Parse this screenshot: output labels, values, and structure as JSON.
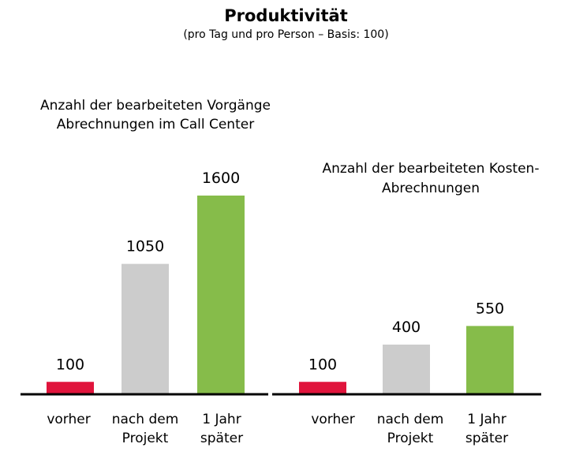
{
  "header": {
    "title": "Produktivität",
    "subtitle": "(pro Tag und pro Person – Basis: 100)"
  },
  "chart_data": [
    {
      "type": "bar",
      "title_lines": [
        "Anzahl der bearbeiteten Vorgänge",
        "Abrechnungen im Call Center"
      ],
      "categories": [
        [
          "vorher"
        ],
        [
          "nach dem",
          "Projekt"
        ],
        [
          "1 Jahr",
          "später"
        ]
      ],
      "values": [
        100,
        1050,
        1600
      ],
      "colors": [
        "#e0143c",
        "#cccccc",
        "#86bc4a"
      ],
      "ylim": [
        0,
        1750
      ]
    },
    {
      "type": "bar",
      "title_lines": [
        "Anzahl der bearbeiteten Kosten-",
        "Abrechnungen"
      ],
      "categories": [
        [
          "vorher"
        ],
        [
          "nach dem",
          "Projekt"
        ],
        [
          "1 Jahr",
          "später"
        ]
      ],
      "values": [
        100,
        400,
        550
      ],
      "colors": [
        "#e0143c",
        "#cccccc",
        "#86bc4a"
      ],
      "ylim": [
        0,
        1750
      ]
    }
  ]
}
